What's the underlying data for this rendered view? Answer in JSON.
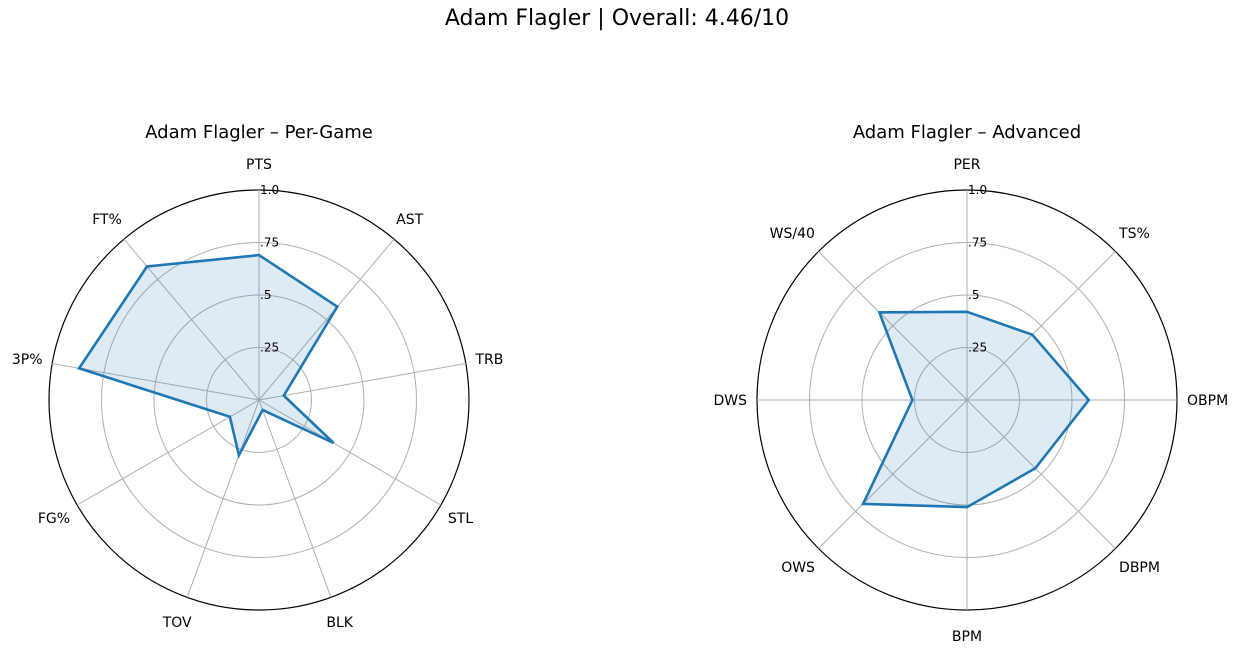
{
  "figure": {
    "title": "Adam Flagler | Overall: 4.46/10"
  },
  "chart_data": [
    {
      "type": "radar",
      "title": "Adam Flagler – Per-Game",
      "categories": [
        "PTS",
        "AST",
        "TRB",
        "STL",
        "BLK",
        "TOV",
        "FG%",
        "3P%",
        "FT%"
      ],
      "values": [
        0.69,
        0.58,
        0.12,
        0.41,
        0.05,
        0.28,
        0.16,
        0.87,
        0.83
      ],
      "rlim": [
        0,
        1.0
      ],
      "radial_ticks": [
        0.25,
        0.5,
        0.75,
        1.0
      ],
      "radial_tick_labels": [
        ".25",
        ".5",
        ".75",
        "1.0"
      ],
      "grid": true,
      "line_color": "#1f77b4",
      "fill_color": "#1f77b4",
      "fill_opacity": 0.15
    },
    {
      "type": "radar",
      "title": "Adam Flagler – Advanced",
      "categories": [
        "PER",
        "TS%",
        "OBPM",
        "DBPM",
        "BPM",
        "OWS",
        "DWS",
        "WS/40"
      ],
      "values": [
        0.42,
        0.44,
        0.58,
        0.46,
        0.51,
        0.7,
        0.26,
        0.59
      ],
      "rlim": [
        0,
        1.0
      ],
      "radial_ticks": [
        0.25,
        0.5,
        0.75,
        1.0
      ],
      "radial_tick_labels": [
        ".25",
        ".5",
        ".75",
        "1.0"
      ],
      "grid": true,
      "line_color": "#1f77b4",
      "fill_color": "#1f77b4",
      "fill_opacity": 0.15
    }
  ]
}
